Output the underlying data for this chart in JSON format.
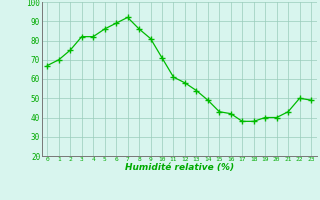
{
  "x": [
    0,
    1,
    2,
    3,
    4,
    5,
    6,
    7,
    8,
    9,
    10,
    11,
    12,
    13,
    14,
    15,
    16,
    17,
    18,
    19,
    20,
    21,
    22,
    23
  ],
  "y": [
    67,
    70,
    75,
    82,
    82,
    86,
    89,
    92,
    86,
    81,
    71,
    61,
    58,
    54,
    49,
    43,
    42,
    38,
    38,
    40,
    40,
    43,
    50,
    49
  ],
  "line_color": "#00bb00",
  "marker": "+",
  "marker_color": "#00bb00",
  "bg_color": "#d8f5ee",
  "grid_color": "#99ccbb",
  "xlabel": "Humidité relative (%)",
  "xlabel_color": "#00aa00",
  "tick_color": "#00aa00",
  "ylim": [
    20,
    100
  ],
  "xlim": [
    -0.5,
    23.5
  ],
  "yticks": [
    20,
    30,
    40,
    50,
    60,
    70,
    80,
    90,
    100
  ],
  "xticks": [
    0,
    1,
    2,
    3,
    4,
    5,
    6,
    7,
    8,
    9,
    10,
    11,
    12,
    13,
    14,
    15,
    16,
    17,
    18,
    19,
    20,
    21,
    22,
    23
  ],
  "figsize": [
    3.2,
    2.0
  ],
  "dpi": 100
}
